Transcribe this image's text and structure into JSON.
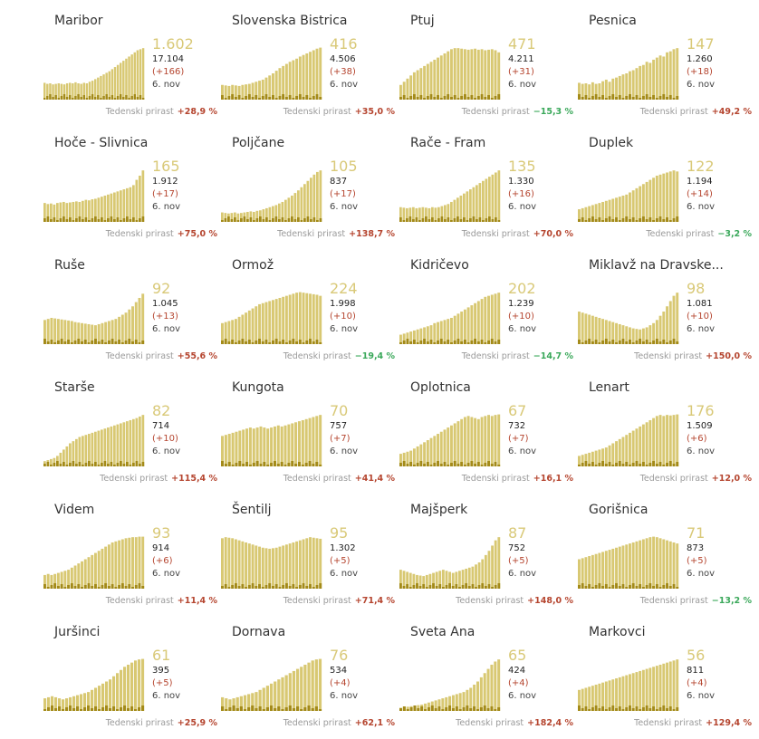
{
  "chart_data": [
    {
      "type": "bar",
      "title": "Maribor",
      "value": "1.602",
      "total": "17.104",
      "delta": "(+166)",
      "date": "6. nov",
      "growth_label": "Tedenski prirast",
      "growth": "+28,9 %",
      "growth_dir": "up",
      "values": [
        32,
        30,
        31,
        29,
        30,
        31,
        30,
        29,
        31,
        32,
        31,
        33,
        31,
        30,
        32,
        31,
        34,
        36,
        39,
        42,
        45,
        48,
        51,
        54,
        58,
        62,
        66,
        70,
        74,
        78,
        82,
        86,
        90,
        94,
        96,
        98
      ]
    },
    {
      "type": "bar",
      "title": "Slovenska Bistrica",
      "value": "416",
      "total": "4.506",
      "delta": "(+38)",
      "date": "6. nov",
      "growth_label": "Tedenski prirast",
      "growth": "+35,0 %",
      "growth_dir": "up",
      "values": [
        28,
        27,
        26,
        28,
        27,
        26,
        28,
        29,
        30,
        32,
        34,
        36,
        38,
        42,
        46,
        50,
        55,
        60,
        64,
        68,
        72,
        75,
        78,
        82,
        85,
        88,
        91,
        94,
        97,
        99
      ]
    },
    {
      "type": "bar",
      "title": "Ptuj",
      "value": "471",
      "total": "4.211",
      "delta": "(+31)",
      "date": "6. nov",
      "growth_label": "Tedenski prirast",
      "growth": "−15,3 %",
      "growth_dir": "down",
      "values": [
        28,
        34,
        40,
        46,
        52,
        56,
        60,
        64,
        68,
        72,
        76,
        80,
        84,
        88,
        92,
        96,
        98,
        98,
        97,
        96,
        95,
        96,
        97,
        95,
        96,
        94,
        95,
        96,
        94,
        90
      ]
    },
    {
      "type": "bar",
      "title": "Pesnica",
      "value": "147",
      "total": "1.260",
      "delta": "(+18)",
      "date": "6. nov",
      "growth_label": "Tedenski prirast",
      "growth": "+49,2 %",
      "growth_dir": "up",
      "values": [
        32,
        30,
        31,
        29,
        33,
        30,
        31,
        35,
        38,
        34,
        40,
        42,
        45,
        48,
        50,
        54,
        56,
        60,
        64,
        66,
        72,
        70,
        76,
        80,
        84,
        82,
        90,
        92,
        96,
        98
      ]
    },
    {
      "type": "bar",
      "title": "Hoče - Slivnica",
      "value": "165",
      "total": "1.912",
      "delta": "(+17)",
      "date": "6. nov",
      "growth_label": "Tedenski prirast",
      "growth": "+75,0 %",
      "growth_dir": "up",
      "values": [
        36,
        34,
        35,
        33,
        36,
        37,
        38,
        36,
        37,
        38,
        39,
        38,
        40,
        42,
        41,
        43,
        44,
        46,
        48,
        50,
        52,
        54,
        56,
        58,
        60,
        62,
        64,
        66,
        70,
        80,
        88,
        98
      ]
    },
    {
      "type": "bar",
      "title": "Poljčane",
      "value": "105",
      "total": "837",
      "delta": "(+17)",
      "date": "6. nov",
      "growth_label": "Tedenski prirast",
      "growth": "+138,7 %",
      "growth_dir": "up",
      "values": [
        18,
        17,
        16,
        17,
        18,
        16,
        17,
        18,
        19,
        20,
        19,
        21,
        22,
        24,
        26,
        28,
        30,
        32,
        35,
        38,
        42,
        46,
        50,
        55,
        60,
        66,
        72,
        78,
        84,
        90,
        95,
        98
      ]
    },
    {
      "type": "bar",
      "title": "Rače - Fram",
      "value": "135",
      "total": "1.330",
      "delta": "(+16)",
      "date": "6. nov",
      "growth_label": "Tedenski prirast",
      "growth": "+70,0 %",
      "growth_dir": "up",
      "values": [
        28,
        27,
        26,
        27,
        28,
        26,
        27,
        28,
        27,
        26,
        28,
        27,
        28,
        30,
        32,
        34,
        38,
        42,
        46,
        50,
        54,
        58,
        62,
        66,
        70,
        74,
        78,
        82,
        86,
        90,
        94,
        98
      ]
    },
    {
      "type": "bar",
      "title": "Duplek",
      "value": "122",
      "total": "1.194",
      "delta": "(+14)",
      "date": "6. nov",
      "growth_label": "Tedenski prirast",
      "growth": "−3,2 %",
      "growth_dir": "down",
      "values": [
        24,
        26,
        28,
        30,
        32,
        34,
        36,
        38,
        40,
        42,
        44,
        46,
        48,
        50,
        52,
        56,
        60,
        64,
        68,
        72,
        76,
        80,
        84,
        88,
        90,
        92,
        94,
        96,
        98,
        96
      ]
    },
    {
      "type": "bar",
      "title": "Ruše",
      "value": "92",
      "total": "1.045",
      "delta": "(+13)",
      "date": "6. nov",
      "growth_label": "Tedenski prirast",
      "growth": "+55,6 %",
      "growth_dir": "up",
      "values": [
        46,
        48,
        50,
        49,
        48,
        47,
        46,
        45,
        44,
        42,
        41,
        40,
        39,
        38,
        37,
        36,
        38,
        40,
        42,
        44,
        46,
        48,
        52,
        56,
        60,
        66,
        72,
        80,
        88,
        96
      ]
    },
    {
      "type": "bar",
      "title": "Ormož",
      "value": "224",
      "total": "1.998",
      "delta": "(+10)",
      "date": "6. nov",
      "growth_label": "Tedenski prirast",
      "growth": "−19,4 %",
      "growth_dir": "down",
      "values": [
        40,
        42,
        44,
        46,
        48,
        52,
        56,
        60,
        64,
        68,
        72,
        76,
        78,
        80,
        82,
        84,
        86,
        88,
        90,
        92,
        94,
        96,
        98,
        99,
        98,
        97,
        96,
        95,
        94,
        92
      ]
    },
    {
      "type": "bar",
      "title": "Kidričevo",
      "value": "202",
      "total": "1.239",
      "delta": "(+10)",
      "date": "6. nov",
      "growth_label": "Tedenski prirast",
      "growth": "−14,7 %",
      "growth_dir": "down",
      "values": [
        18,
        20,
        22,
        24,
        26,
        28,
        30,
        32,
        34,
        36,
        40,
        42,
        44,
        46,
        48,
        50,
        54,
        58,
        62,
        66,
        70,
        74,
        78,
        82,
        86,
        90,
        92,
        94,
        96,
        98
      ]
    },
    {
      "type": "bar",
      "title": "Miklavž na Dravske...",
      "value": "98",
      "total": "1.081",
      "delta": "(+10)",
      "date": "6. nov",
      "growth_label": "Tedenski prirast",
      "growth": "+150,0 %",
      "growth_dir": "up",
      "values": [
        62,
        60,
        58,
        56,
        54,
        52,
        50,
        48,
        46,
        44,
        42,
        40,
        38,
        36,
        34,
        32,
        30,
        29,
        28,
        30,
        32,
        36,
        40,
        46,
        54,
        62,
        72,
        82,
        92,
        98
      ]
    },
    {
      "type": "bar",
      "title": "Starše",
      "value": "82",
      "total": "714",
      "delta": "(+10)",
      "date": "6. nov",
      "growth_label": "Tedenski prirast",
      "growth": "+115,4 %",
      "growth_dir": "up",
      "values": [
        10,
        12,
        14,
        16,
        20,
        26,
        32,
        38,
        44,
        48,
        52,
        56,
        58,
        60,
        62,
        64,
        66,
        68,
        70,
        72,
        74,
        76,
        78,
        80,
        82,
        84,
        86,
        88,
        90,
        92,
        95,
        98
      ]
    },
    {
      "type": "bar",
      "title": "Kungota",
      "value": "70",
      "total": "757",
      "delta": "(+7)",
      "date": "6. nov",
      "growth_label": "Tedenski prirast",
      "growth": "+41,4 %",
      "growth_dir": "up",
      "values": [
        58,
        60,
        62,
        64,
        66,
        68,
        70,
        72,
        74,
        72,
        74,
        76,
        74,
        72,
        74,
        76,
        78,
        76,
        78,
        80,
        82,
        84,
        86,
        88,
        90,
        92,
        94,
        96,
        98
      ]
    },
    {
      "type": "bar",
      "title": "Oplotnica",
      "value": "67",
      "total": "732",
      "delta": "(+7)",
      "date": "6. nov",
      "growth_label": "Tedenski prirast",
      "growth": "+16,1 %",
      "growth_dir": "up",
      "values": [
        24,
        26,
        28,
        30,
        34,
        38,
        42,
        46,
        50,
        54,
        58,
        62,
        66,
        70,
        74,
        78,
        82,
        86,
        90,
        94,
        96,
        94,
        92,
        90,
        94,
        96,
        98,
        96,
        98,
        99
      ]
    },
    {
      "type": "bar",
      "title": "Lenart",
      "value": "176",
      "total": "1.509",
      "delta": "(+6)",
      "date": "6. nov",
      "growth_label": "Tedenski prirast",
      "growth": "+12,0 %",
      "growth_dir": "up",
      "values": [
        20,
        22,
        24,
        26,
        28,
        30,
        32,
        34,
        36,
        40,
        44,
        48,
        52,
        56,
        60,
        64,
        68,
        72,
        76,
        80,
        84,
        88,
        92,
        96,
        98,
        96,
        98,
        97,
        98,
        99
      ]
    },
    {
      "type": "bar",
      "title": "Videm",
      "value": "93",
      "total": "914",
      "delta": "(+6)",
      "date": "6. nov",
      "growth_label": "Tedenski prirast",
      "growth": "+11,4 %",
      "growth_dir": "up",
      "values": [
        26,
        28,
        26,
        28,
        30,
        32,
        34,
        36,
        40,
        44,
        48,
        52,
        56,
        60,
        64,
        68,
        72,
        76,
        80,
        84,
        88,
        90,
        92,
        94,
        96,
        97,
        98,
        98,
        99,
        99
      ]
    },
    {
      "type": "bar",
      "title": "Šentilj",
      "value": "95",
      "total": "1.302",
      "delta": "(+5)",
      "date": "6. nov",
      "growth_label": "Tedenski prirast",
      "growth": "+71,4 %",
      "growth_dir": "up",
      "values": [
        96,
        98,
        97,
        96,
        94,
        92,
        90,
        88,
        86,
        84,
        82,
        80,
        78,
        77,
        76,
        77,
        78,
        80,
        82,
        84,
        86,
        88,
        90,
        92,
        94,
        96,
        98,
        97,
        96,
        95
      ]
    },
    {
      "type": "bar",
      "title": "Majšperk",
      "value": "87",
      "total": "752",
      "delta": "(+5)",
      "date": "6. nov",
      "growth_label": "Tedenski prirast",
      "growth": "+148,0 %",
      "growth_dir": "up",
      "values": [
        36,
        34,
        32,
        30,
        28,
        26,
        25,
        24,
        26,
        28,
        30,
        32,
        34,
        36,
        34,
        32,
        30,
        32,
        34,
        36,
        38,
        40,
        42,
        46,
        50,
        56,
        64,
        72,
        82,
        92,
        98
      ]
    },
    {
      "type": "bar",
      "title": "Gorišnica",
      "value": "71",
      "total": "873",
      "delta": "(+5)",
      "date": "6. nov",
      "growth_label": "Tedenski prirast",
      "growth": "−13,2 %",
      "growth_dir": "down",
      "values": [
        56,
        58,
        60,
        62,
        64,
        66,
        68,
        70,
        72,
        74,
        76,
        78,
        80,
        82,
        84,
        86,
        88,
        90,
        92,
        94,
        96,
        98,
        99,
        98,
        96,
        94,
        92,
        90,
        88,
        86
      ]
    },
    {
      "type": "bar",
      "title": "Juršinci",
      "value": "61",
      "total": "395",
      "delta": "(+5)",
      "date": "6. nov",
      "growth_label": "Tedenski prirast",
      "growth": "+25,9 %",
      "growth_dir": "up",
      "values": [
        24,
        26,
        28,
        26,
        24,
        22,
        24,
        26,
        28,
        30,
        32,
        34,
        36,
        40,
        44,
        48,
        52,
        56,
        60,
        66,
        72,
        78,
        84,
        88,
        92,
        96,
        98,
        99
      ]
    },
    {
      "type": "bar",
      "title": "Dornava",
      "value": "76",
      "total": "534",
      "delta": "(+4)",
      "date": "6. nov",
      "growth_label": "Tedenski prirast",
      "growth": "+62,1 %",
      "growth_dir": "up",
      "values": [
        26,
        24,
        22,
        24,
        26,
        28,
        30,
        32,
        34,
        36,
        40,
        44,
        48,
        52,
        56,
        60,
        64,
        68,
        72,
        76,
        80,
        84,
        88,
        92,
        96,
        98,
        99
      ]
    },
    {
      "type": "bar",
      "title": "Sveta Ana",
      "value": "65",
      "total": "424",
      "delta": "(+4)",
      "date": "6. nov",
      "growth_label": "Tedenski prirast",
      "growth": "+182,4 %",
      "growth_dir": "up",
      "values": [
        6,
        7,
        8,
        9,
        10,
        11,
        12,
        14,
        16,
        18,
        20,
        22,
        24,
        26,
        28,
        30,
        32,
        34,
        36,
        40,
        44,
        50,
        56,
        64,
        72,
        80,
        88,
        94,
        98
      ]
    },
    {
      "type": "bar",
      "title": "Markovci",
      "value": "56",
      "total": "811",
      "delta": "(+4)",
      "date": "6. nov",
      "growth_label": "Tedenski prirast",
      "growth": "+129,4 %",
      "growth_dir": "up",
      "values": [
        40,
        42,
        44,
        46,
        48,
        50,
        52,
        54,
        56,
        58,
        60,
        62,
        64,
        66,
        68,
        70,
        72,
        74,
        76,
        78,
        80,
        82,
        84,
        86,
        88,
        90,
        92,
        94,
        96,
        98
      ]
    }
  ],
  "colors": {
    "bar": "#d8c872",
    "bar_dark": "#a38a18",
    "value": "#d9c978",
    "up": "#b5452f",
    "down": "#3aa85a"
  }
}
